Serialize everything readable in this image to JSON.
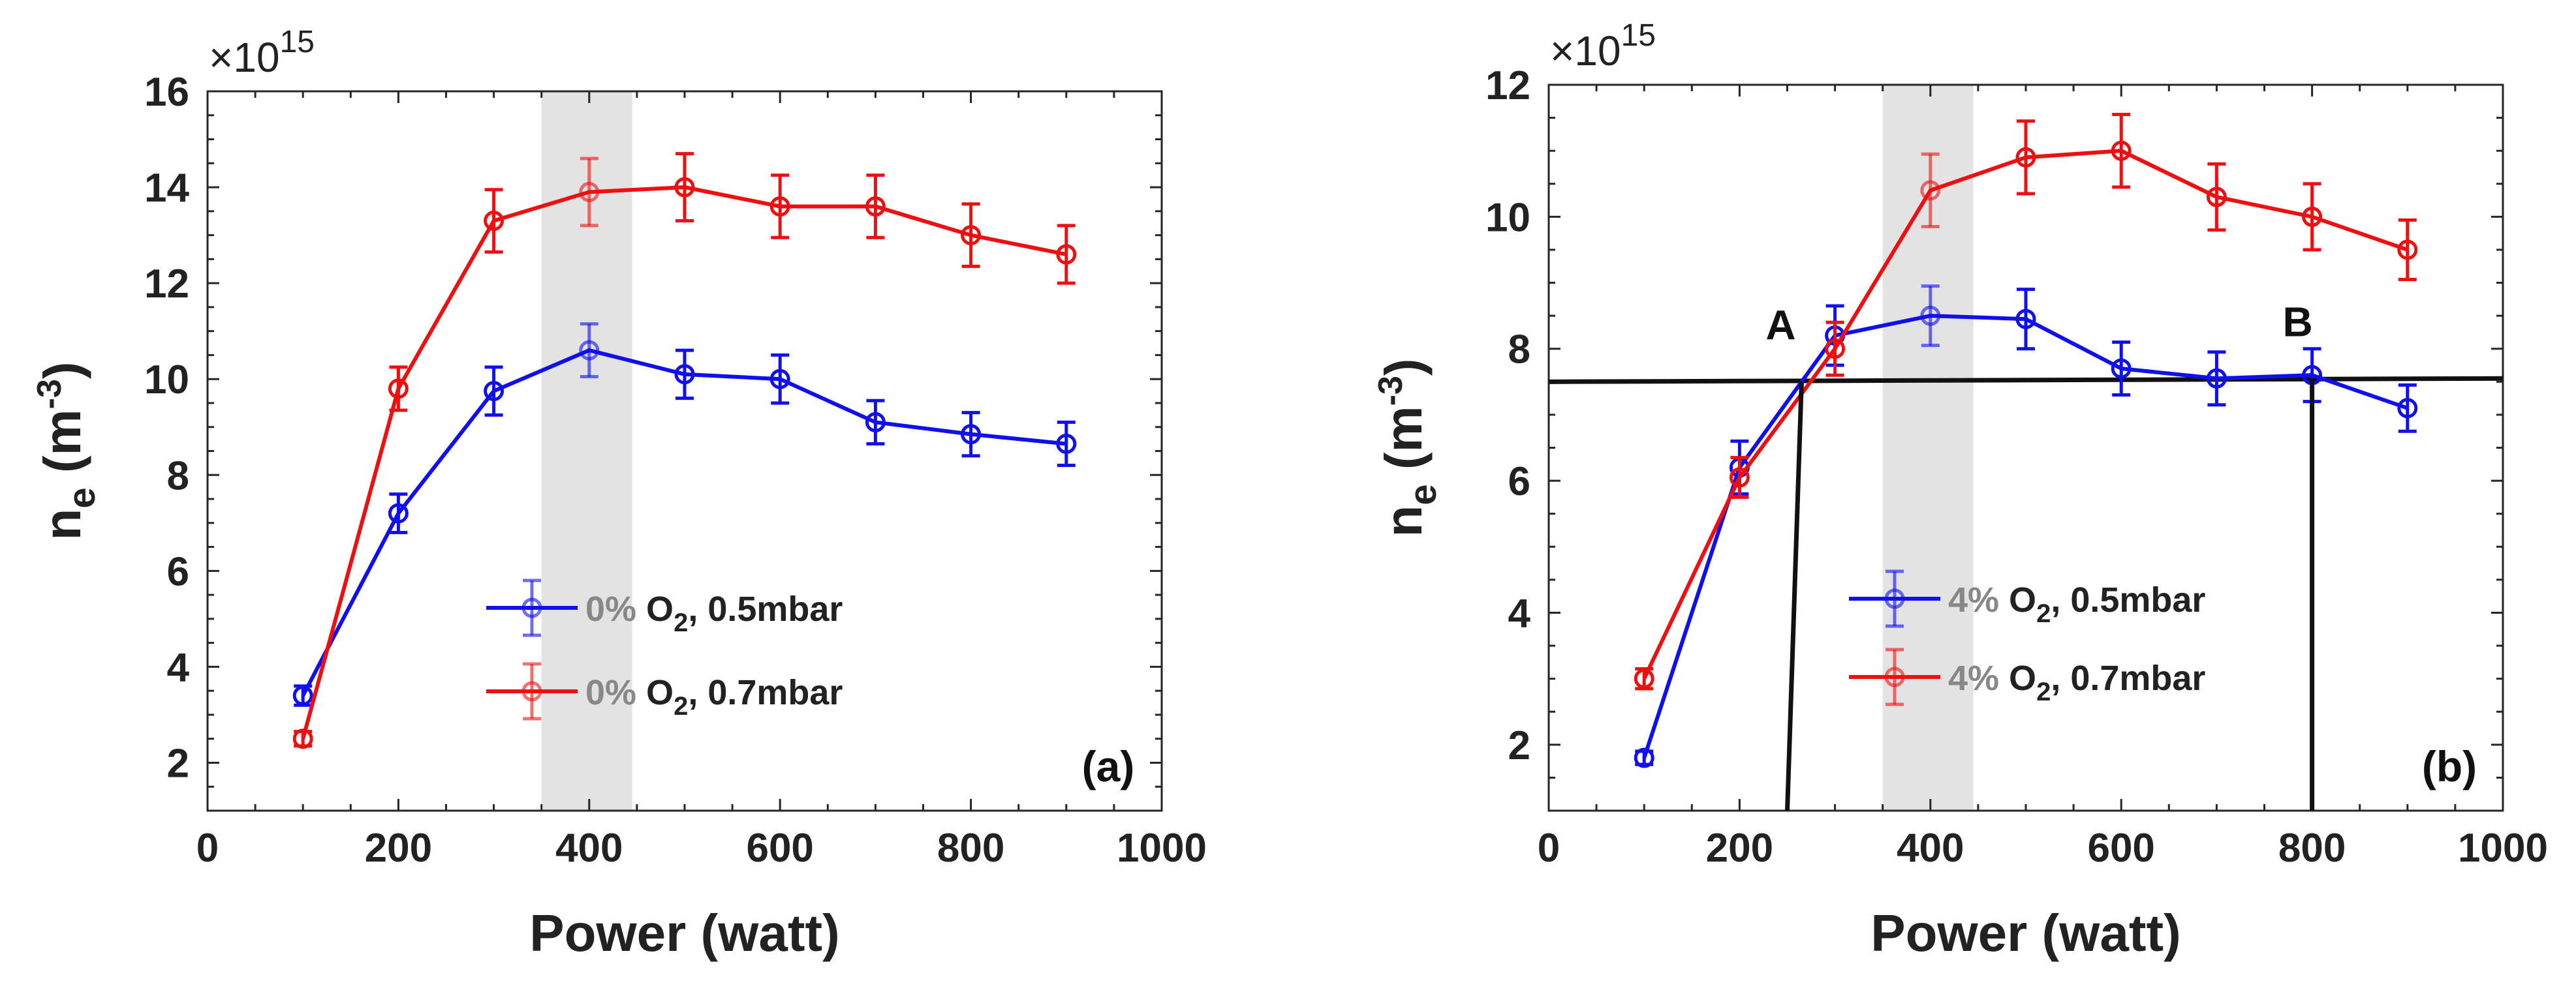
{
  "figure": {
    "exponent_label": "×10",
    "exponent_power": "15"
  },
  "chart_data": [
    {
      "type": "line",
      "panel_label": "(a)",
      "xlabel": "Power (watt)",
      "ylabel_base": "n",
      "ylabel_sub": "e",
      "ylabel_unit_open": " (m",
      "ylabel_unit_sup": "-3",
      "ylabel_unit_close": ")",
      "xlim": [
        0,
        1000
      ],
      "ylim": [
        1,
        16
      ],
      "xticks": [
        0,
        200,
        400,
        600,
        800,
        1000
      ],
      "yticks": [
        2,
        4,
        6,
        8,
        10,
        12,
        14,
        16
      ],
      "y_scale_exponent": 15,
      "shaded_band": [
        350,
        445
      ],
      "band_color": "#e3e3e3",
      "x": [
        100,
        200,
        300,
        400,
        500,
        600,
        700,
        800,
        900
      ],
      "series": [
        {
          "name_pct": "0%",
          "name_rest": " O",
          "name_sub": "2",
          "name_tail": ", 0.5mbar",
          "color": "#1010ee",
          "values": [
            3.4,
            7.2,
            9.75,
            10.6,
            10.1,
            10.0,
            9.1,
            8.85,
            8.65
          ],
          "errors": [
            0.2,
            0.4,
            0.5,
            0.55,
            0.5,
            0.5,
            0.45,
            0.45,
            0.45
          ]
        },
        {
          "name_pct": "0%",
          "name_rest": " O",
          "name_sub": "2",
          "name_tail": ", 0.7mbar",
          "color": "#ee1010",
          "values": [
            2.5,
            9.8,
            13.3,
            13.9,
            14.0,
            13.6,
            13.6,
            13.0,
            12.6
          ],
          "errors": [
            0.15,
            0.45,
            0.65,
            0.7,
            0.7,
            0.65,
            0.65,
            0.65,
            0.6
          ]
        }
      ]
    },
    {
      "type": "line",
      "panel_label": "(b)",
      "xlabel": "Power (watt)",
      "ylabel_base": "n",
      "ylabel_sub": "e",
      "ylabel_unit_open": " (m",
      "ylabel_unit_sup": "-3",
      "ylabel_unit_close": ")",
      "xlim": [
        0,
        1000
      ],
      "ylim": [
        1,
        12
      ],
      "xticks": [
        0,
        200,
        400,
        600,
        800,
        1000
      ],
      "yticks": [
        2,
        4,
        6,
        8,
        10,
        12
      ],
      "y_scale_exponent": 15,
      "shaded_band": [
        350,
        445
      ],
      "band_color": "#e3e3e3",
      "x": [
        100,
        200,
        300,
        400,
        500,
        600,
        700,
        800,
        900
      ],
      "series": [
        {
          "name_pct": "4%",
          "name_rest": " O",
          "name_sub": "2",
          "name_tail": ", 0.5mbar",
          "color": "#1010ee",
          "values": [
            1.8,
            6.2,
            8.2,
            8.5,
            8.45,
            7.7,
            7.55,
            7.6,
            7.1
          ],
          "errors": [
            0.1,
            0.4,
            0.45,
            0.45,
            0.45,
            0.4,
            0.4,
            0.4,
            0.35
          ]
        },
        {
          "name_pct": "4%",
          "name_rest": " O",
          "name_sub": "2",
          "name_tail": ", 0.7mbar",
          "color": "#ee1010",
          "values": [
            3.0,
            6.05,
            8.0,
            10.4,
            10.9,
            11.0,
            10.3,
            10.0,
            9.5
          ],
          "errors": [
            0.15,
            0.3,
            0.4,
            0.55,
            0.55,
            0.55,
            0.5,
            0.5,
            0.45
          ]
        }
      ],
      "reference_line": {
        "y_left": 7.5,
        "y_right": 7.55
      },
      "annotations": [
        {
          "label": "A",
          "x": 265,
          "y": 7.5,
          "line_x_top": 265,
          "line_x_bottom": 250
        },
        {
          "label": "B",
          "x": 800,
          "y": 7.55,
          "line_x_top": 800,
          "line_x_bottom": 800
        }
      ]
    }
  ]
}
